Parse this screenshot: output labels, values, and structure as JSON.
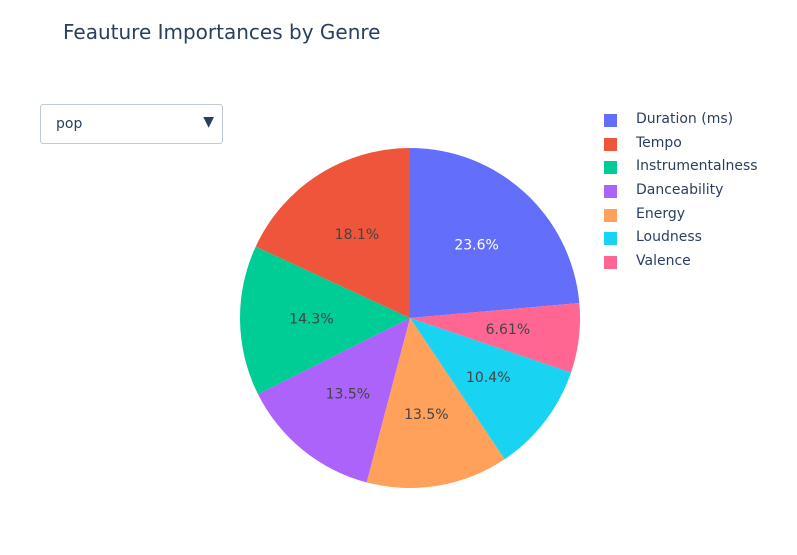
{
  "title": "Feauture Importances by Genre",
  "dropdown": {
    "selected": "pop",
    "arrow": "▼"
  },
  "chart_data": {
    "type": "pie",
    "title": "Feauture Importances by Genre",
    "direction": "clockwise",
    "legend_position": "right",
    "slices": [
      {
        "label": "Duration (ms)",
        "value": 23.6,
        "text": "23.6%",
        "color": "#636efa",
        "text_color": "#ffffff"
      },
      {
        "label": "Valence",
        "value": 6.61,
        "text": "6.61%",
        "color": "#ff6692",
        "text_color": "#444444"
      },
      {
        "label": "Loudness",
        "value": 10.4,
        "text": "10.4%",
        "color": "#19d3f3",
        "text_color": "#444444"
      },
      {
        "label": "Energy",
        "value": 13.5,
        "text": "13.5%",
        "color": "#ffa15a",
        "text_color": "#444444"
      },
      {
        "label": "Danceability",
        "value": 13.5,
        "text": "13.5%",
        "color": "#ab63fa",
        "text_color": "#444444"
      },
      {
        "label": "Instrumentalness",
        "value": 14.3,
        "text": "14.3%",
        "color": "#00cc96",
        "text_color": "#444444"
      },
      {
        "label": "Tempo",
        "value": 18.1,
        "text": "18.1%",
        "color": "#ef553b",
        "text_color": "#444444"
      }
    ],
    "legend": [
      {
        "label": "Duration (ms)",
        "color": "#636efa"
      },
      {
        "label": "Tempo",
        "color": "#ef553b"
      },
      {
        "label": "Instrumentalness",
        "color": "#00cc96"
      },
      {
        "label": "Danceability",
        "color": "#ab63fa"
      },
      {
        "label": "Energy",
        "color": "#ffa15a"
      },
      {
        "label": "Loudness",
        "color": "#19d3f3"
      },
      {
        "label": "Valence",
        "color": "#ff6692"
      }
    ]
  }
}
